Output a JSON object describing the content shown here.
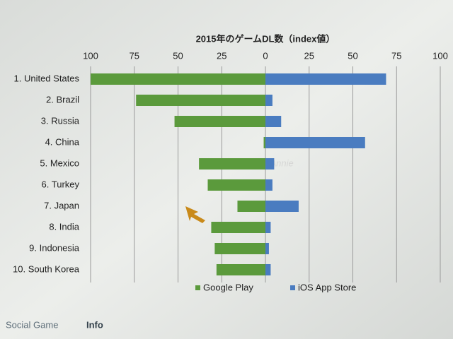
{
  "chart_data": {
    "type": "bar",
    "orientation": "horizontal",
    "title": "2015年のゲームDL数（index値）",
    "categories": [
      "1. United States",
      "2. Brazil",
      "3. Russia",
      "4. China",
      "5. Mexico",
      "6. Turkey",
      "7. Japan",
      "8. India",
      "9. Indonesia",
      "10. South Korea"
    ],
    "series": [
      {
        "name": "Google Play",
        "color": "#5b9a3c",
        "values": [
          -100,
          -74,
          -52,
          -1,
          -38,
          -33,
          -16,
          -31,
          -29,
          -28
        ]
      },
      {
        "name": "iOS App Store",
        "color": "#4a7cc0",
        "values": [
          69,
          4,
          9,
          57,
          5,
          4,
          19,
          3,
          2,
          3
        ]
      }
    ],
    "xlim": [
      -100,
      100
    ],
    "xticks": [
      {
        "value": -100,
        "label": "100"
      },
      {
        "value": -75,
        "label": "75"
      },
      {
        "value": -50,
        "label": "50"
      },
      {
        "value": -25,
        "label": "25"
      },
      0,
      25,
      50,
      75,
      100
    ],
    "grid": true,
    "legend": "bottom"
  },
  "watermark": "App Annie",
  "footer": {
    "brand": "Social Game",
    "suffix": "Info"
  }
}
